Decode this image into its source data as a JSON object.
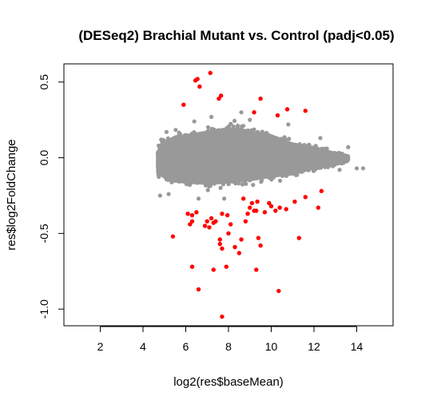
{
  "chart_data": {
    "type": "scatter",
    "title": "(DESeq2) Brachial Mutant vs. Control (padj<0.05)",
    "xlabel": "log2(res$baseMean)",
    "ylabel": "res$log2FoldChange",
    "xlim": [
      0.3,
      15.7
    ],
    "ylim": [
      -1.11,
      0.62
    ],
    "xticks": [
      2,
      4,
      6,
      8,
      10,
      12,
      14
    ],
    "yticks": [
      0.5,
      0.0,
      -0.5,
      -1.0
    ],
    "xtick_labels": [
      "2",
      "4",
      "6",
      "8",
      "10",
      "12",
      "14"
    ],
    "ytick_labels": [
      "0.5",
      "0.0",
      "-0.5",
      "-1.0"
    ],
    "grid": false,
    "legend": "none",
    "colors": {
      "nonsignificant": "#999999",
      "significant": "#ff0000"
    },
    "nonsignificant_cloud": {
      "description_points": [
        [
          4.7,
          0.09
        ],
        [
          4.7,
          -0.14
        ],
        [
          5.0,
          -0.18
        ],
        [
          5.0,
          0.14
        ],
        [
          5.5,
          0.19
        ],
        [
          5.5,
          -0.21
        ],
        [
          6.0,
          0.2
        ],
        [
          6.0,
          -0.22
        ],
        [
          7.0,
          0.23
        ],
        [
          7.0,
          -0.23
        ],
        [
          8.0,
          0.26
        ],
        [
          8.0,
          -0.22
        ],
        [
          9.0,
          0.23
        ],
        [
          9.0,
          -0.2
        ],
        [
          10.0,
          0.2
        ],
        [
          10.0,
          -0.17
        ],
        [
          11.0,
          0.13
        ],
        [
          11.0,
          -0.15
        ],
        [
          12.0,
          0.1
        ],
        [
          12.0,
          -0.1
        ],
        [
          13.0,
          0.05
        ],
        [
          13.0,
          -0.07
        ],
        [
          13.6,
          0.02
        ],
        [
          13.6,
          -0.03
        ]
      ],
      "outliers": [
        [
          4.8,
          -0.25
        ],
        [
          4.85,
          0.12
        ],
        [
          5.1,
          0.17
        ],
        [
          5.2,
          -0.24
        ],
        [
          6.4,
          0.24
        ],
        [
          6.6,
          -0.27
        ],
        [
          7.2,
          0.27
        ],
        [
          7.8,
          -0.27
        ],
        [
          8.6,
          0.3
        ],
        [
          9.0,
          0.25
        ],
        [
          10.8,
          0.22
        ],
        [
          12.3,
          0.13
        ],
        [
          13.2,
          -0.08
        ],
        [
          13.6,
          0.07
        ],
        [
          14.0,
          -0.07
        ],
        [
          14.3,
          -0.07
        ]
      ]
    },
    "significant_points": [
      [
        5.9,
        0.35
      ],
      [
        6.45,
        0.51
      ],
      [
        6.55,
        0.52
      ],
      [
        6.65,
        0.47
      ],
      [
        7.15,
        0.56
      ],
      [
        7.65,
        0.41
      ],
      [
        7.55,
        0.39
      ],
      [
        9.5,
        0.39
      ],
      [
        9.2,
        0.3
      ],
      [
        10.3,
        0.28
      ],
      [
        10.75,
        0.32
      ],
      [
        11.6,
        0.31
      ],
      [
        5.4,
        -0.52
      ],
      [
        6.1,
        -0.37
      ],
      [
        6.3,
        -0.38
      ],
      [
        6.3,
        -0.42
      ],
      [
        6.5,
        -0.36
      ],
      [
        6.9,
        -0.45
      ],
      [
        7.0,
        -0.42
      ],
      [
        7.1,
        -0.46
      ],
      [
        7.2,
        -0.4
      ],
      [
        7.3,
        -0.43
      ],
      [
        7.4,
        -0.42
      ],
      [
        7.6,
        -0.54
      ],
      [
        7.6,
        -0.57
      ],
      [
        7.7,
        -0.6
      ],
      [
        7.7,
        -0.37
      ],
      [
        7.95,
        -0.38
      ],
      [
        8.0,
        -0.5
      ],
      [
        8.1,
        -0.44
      ],
      [
        8.3,
        -0.59
      ],
      [
        8.5,
        -0.63
      ],
      [
        8.6,
        -0.54
      ],
      [
        8.8,
        -0.42
      ],
      [
        8.9,
        -0.37
      ],
      [
        9.0,
        -0.33
      ],
      [
        9.1,
        -0.3
      ],
      [
        9.2,
        -0.35
      ],
      [
        9.3,
        -0.35
      ],
      [
        9.35,
        -0.29
      ],
      [
        9.4,
        -0.53
      ],
      [
        9.5,
        -0.58
      ],
      [
        9.7,
        -0.36
      ],
      [
        9.9,
        -0.3
      ],
      [
        10.0,
        -0.32
      ],
      [
        10.2,
        -0.35
      ],
      [
        10.4,
        -0.33
      ],
      [
        10.7,
        -0.34
      ],
      [
        11.1,
        -0.29
      ],
      [
        11.3,
        -0.53
      ],
      [
        11.6,
        -0.26
      ],
      [
        12.2,
        -0.33
      ],
      [
        12.35,
        -0.22
      ],
      [
        6.3,
        -0.72
      ],
      [
        6.6,
        -0.87
      ],
      [
        7.3,
        -0.74
      ],
      [
        7.9,
        -0.72
      ],
      [
        9.3,
        -0.74
      ],
      [
        10.35,
        -0.88
      ],
      [
        7.7,
        -1.05
      ],
      [
        6.2,
        -0.44
      ],
      [
        8.7,
        -0.27
      ]
    ]
  }
}
